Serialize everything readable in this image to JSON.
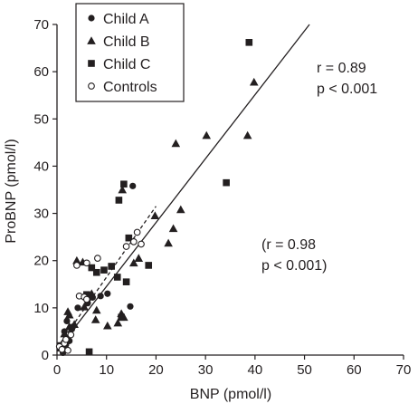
{
  "chart_data": {
    "type": "scatter",
    "title": "",
    "xlabel": "BNP (pmol/l)",
    "ylabel": "ProBNP (pmol/l)",
    "xlim": [
      0,
      70
    ],
    "ylim": [
      0,
      70
    ],
    "xticks": [
      0,
      10,
      20,
      30,
      40,
      50,
      60,
      70
    ],
    "yticks": [
      0,
      10,
      20,
      30,
      40,
      50,
      60,
      70
    ],
    "grid": false,
    "legend_position": "top-left",
    "colors": {
      "ink": "#231f20",
      "background": "#ffffff"
    },
    "series": [
      {
        "name": "Child A",
        "marker": "filled-circle",
        "points": [
          [
            1.2,
            0.5
          ],
          [
            1.8,
            2.2
          ],
          [
            2.5,
            3.0
          ],
          [
            3.0,
            5.5
          ],
          [
            1.5,
            5.0
          ],
          [
            3.2,
            6.0
          ],
          [
            2.0,
            7.2
          ],
          [
            4.2,
            10.0
          ],
          [
            6.2,
            11.0
          ],
          [
            7.2,
            12.2
          ],
          [
            8.8,
            12.5
          ],
          [
            10.2,
            13.0
          ],
          [
            14.8,
            10.3
          ],
          [
            15.3,
            35.8
          ]
        ]
      },
      {
        "name": "Child B",
        "marker": "filled-triangle",
        "points": [
          [
            0.8,
            1.5
          ],
          [
            1.5,
            4.5
          ],
          [
            2.5,
            8.5
          ],
          [
            2.2,
            9.2
          ],
          [
            2.5,
            6.0
          ],
          [
            3.5,
            6.5
          ],
          [
            4.0,
            20.0
          ],
          [
            5.2,
            19.7
          ],
          [
            5.5,
            10.2
          ],
          [
            7.0,
            13.0
          ],
          [
            8.0,
            9.5
          ],
          [
            7.8,
            7.5
          ],
          [
            10.2,
            6.2
          ],
          [
            12.3,
            6.8
          ],
          [
            13.0,
            8.8
          ],
          [
            13.5,
            8.0
          ],
          [
            13.2,
            35.0
          ],
          [
            15.5,
            19.5
          ],
          [
            16.5,
            20.5
          ],
          [
            19.8,
            29.5
          ],
          [
            22.5,
            23.7
          ],
          [
            23.5,
            26.8
          ],
          [
            24.0,
            44.8
          ],
          [
            25.0,
            30.8
          ],
          [
            30.2,
            46.5
          ],
          [
            38.5,
            46.5
          ],
          [
            39.8,
            57.8
          ]
        ]
      },
      {
        "name": "Child C",
        "marker": "filled-square",
        "points": [
          [
            0.8,
            2.0
          ],
          [
            6.5,
            0.7
          ],
          [
            6.0,
            12.8
          ],
          [
            7.0,
            18.5
          ],
          [
            8.0,
            17.5
          ],
          [
            9.5,
            18.0
          ],
          [
            11.0,
            18.8
          ],
          [
            12.5,
            32.8
          ],
          [
            13.5,
            36.2
          ],
          [
            12.2,
            16.5
          ],
          [
            13.0,
            8.0
          ],
          [
            14.0,
            15.5
          ],
          [
            14.5,
            24.8
          ],
          [
            18.5,
            19.0
          ],
          [
            34.2,
            36.5
          ],
          [
            38.8,
            66.2
          ]
        ]
      },
      {
        "name": "Controls",
        "marker": "open-circle",
        "points": [
          [
            0.5,
            1.8
          ],
          [
            1.0,
            1.2
          ],
          [
            1.5,
            2.5
          ],
          [
            1.8,
            3.3
          ],
          [
            2.2,
            1.0
          ],
          [
            2.8,
            4.3
          ],
          [
            4.5,
            12.5
          ],
          [
            5.5,
            12.3
          ],
          [
            6.0,
            11.8
          ],
          [
            4.0,
            19.0
          ],
          [
            6.0,
            19.5
          ],
          [
            8.2,
            20.5
          ],
          [
            14.0,
            23.0
          ],
          [
            15.5,
            24.0
          ],
          [
            16.2,
            26.0
          ],
          [
            17.0,
            23.5
          ]
        ]
      }
    ],
    "fit_lines": [
      {
        "style": "solid",
        "from": [
          0,
          1.0
        ],
        "to": [
          51,
          70
        ]
      },
      {
        "style": "dashed",
        "from": [
          0,
          1.5
        ],
        "to": [
          20,
          31.5
        ]
      }
    ],
    "annotations": [
      {
        "lines": [
          "r = 0.89",
          "p < 0.001"
        ]
      },
      {
        "lines": [
          "(r = 0.98",
          "p < 0.001)"
        ]
      }
    ]
  }
}
